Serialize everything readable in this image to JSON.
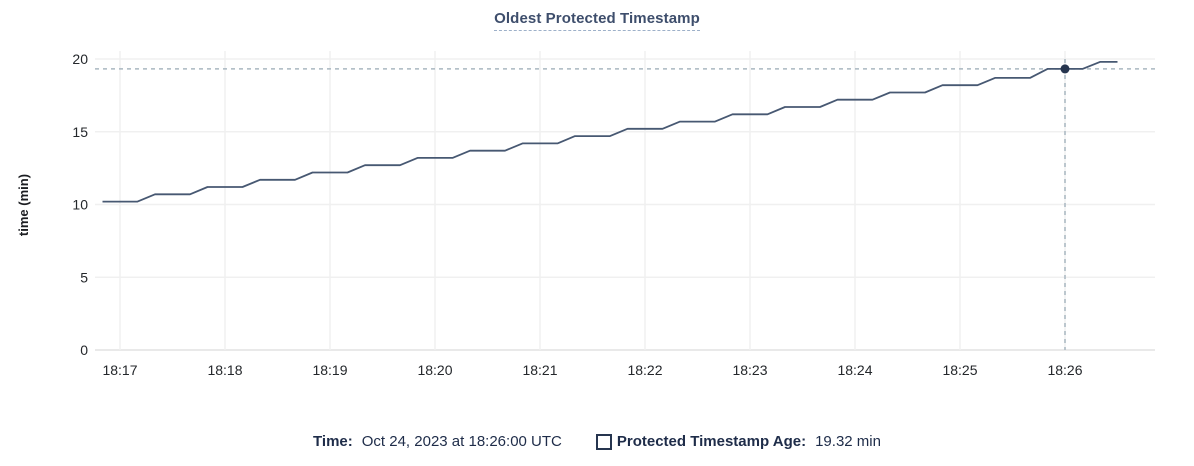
{
  "title": "Oldest Protected Timestamp",
  "tooltip": {
    "time_label": "Time:",
    "time_value": "Oct 24, 2023 at 18:26:00 UTC",
    "series_label": "Protected Timestamp Age:",
    "series_value": "19.32 min"
  },
  "colors": {
    "line": "#475872",
    "dot": "#26354f",
    "grid": "#f0f0f0",
    "axis": "#e2e2e2",
    "tick_text": "#24272b",
    "crosshair": "#a9b7c1",
    "ylabel_text": "#1b1d21"
  },
  "chart_data": {
    "type": "line",
    "title": "Oldest Protected Timestamp",
    "xlabel": "",
    "ylabel": "time (min)",
    "ylim": [
      0,
      20
    ],
    "y_ticks": [
      0,
      5,
      10,
      15,
      20
    ],
    "x_ticks": [
      "18:17",
      "18:18",
      "18:19",
      "18:20",
      "18:21",
      "18:22",
      "18:23",
      "18:24",
      "18:25",
      "18:26"
    ],
    "grid": true,
    "legend_position": "bottom",
    "crosshair": {
      "time": "18:26:00",
      "value": 19.32
    },
    "series": [
      {
        "name": "Protected Timestamp Age",
        "unit": "min",
        "points": [
          [
            "18:16:50",
            10.2
          ],
          [
            "18:17:00",
            10.2
          ],
          [
            "18:17:10",
            10.2
          ],
          [
            "18:17:20",
            10.7
          ],
          [
            "18:17:30",
            10.7
          ],
          [
            "18:17:40",
            10.7
          ],
          [
            "18:17:50",
            11.2
          ],
          [
            "18:18:00",
            11.2
          ],
          [
            "18:18:10",
            11.2
          ],
          [
            "18:18:20",
            11.7
          ],
          [
            "18:18:30",
            11.7
          ],
          [
            "18:18:40",
            11.7
          ],
          [
            "18:18:50",
            12.2
          ],
          [
            "18:19:00",
            12.2
          ],
          [
            "18:19:10",
            12.2
          ],
          [
            "18:19:20",
            12.7
          ],
          [
            "18:19:30",
            12.7
          ],
          [
            "18:19:40",
            12.7
          ],
          [
            "18:19:50",
            13.2
          ],
          [
            "18:20:00",
            13.2
          ],
          [
            "18:20:10",
            13.2
          ],
          [
            "18:20:20",
            13.7
          ],
          [
            "18:20:30",
            13.7
          ],
          [
            "18:20:40",
            13.7
          ],
          [
            "18:20:50",
            14.2
          ],
          [
            "18:21:00",
            14.2
          ],
          [
            "18:21:10",
            14.2
          ],
          [
            "18:21:20",
            14.7
          ],
          [
            "18:21:30",
            14.7
          ],
          [
            "18:21:40",
            14.7
          ],
          [
            "18:21:50",
            15.2
          ],
          [
            "18:22:00",
            15.2
          ],
          [
            "18:22:10",
            15.2
          ],
          [
            "18:22:20",
            15.7
          ],
          [
            "18:22:30",
            15.7
          ],
          [
            "18:22:40",
            15.7
          ],
          [
            "18:22:50",
            16.2
          ],
          [
            "18:23:00",
            16.2
          ],
          [
            "18:23:10",
            16.2
          ],
          [
            "18:23:20",
            16.7
          ],
          [
            "18:23:30",
            16.7
          ],
          [
            "18:23:40",
            16.7
          ],
          [
            "18:23:50",
            17.2
          ],
          [
            "18:24:00",
            17.2
          ],
          [
            "18:24:10",
            17.2
          ],
          [
            "18:24:20",
            17.7
          ],
          [
            "18:24:30",
            17.7
          ],
          [
            "18:24:40",
            17.7
          ],
          [
            "18:24:50",
            18.2
          ],
          [
            "18:25:00",
            18.2
          ],
          [
            "18:25:10",
            18.2
          ],
          [
            "18:25:20",
            18.7
          ],
          [
            "18:25:30",
            18.7
          ],
          [
            "18:25:40",
            18.7
          ],
          [
            "18:25:50",
            19.32
          ],
          [
            "18:26:00",
            19.32
          ],
          [
            "18:26:10",
            19.32
          ],
          [
            "18:26:20",
            19.8
          ],
          [
            "18:26:30",
            19.8
          ]
        ]
      }
    ]
  }
}
